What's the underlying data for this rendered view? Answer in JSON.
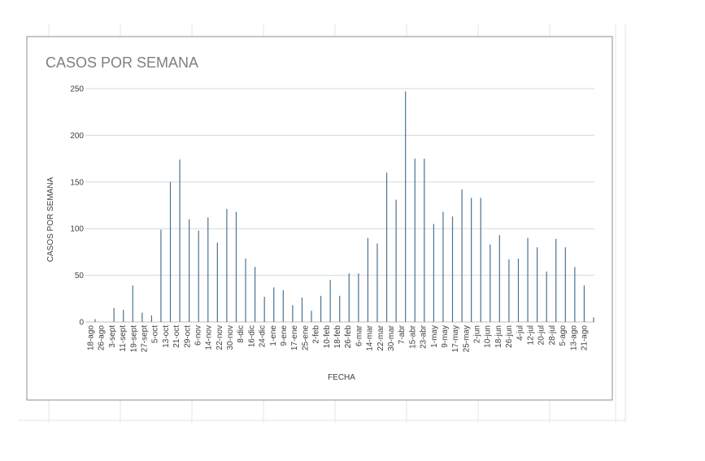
{
  "chart_data": {
    "type": "bar",
    "title": "CASOS POR SEMANA",
    "y_label": "CASOS POR SEMANA",
    "x_label": "FECHA",
    "xticks": [
      "18-ago",
      "26-ago",
      "3-sept",
      "11-sept",
      "19-sept",
      "27-sept",
      "5-oct",
      "13-oct",
      "21-oct",
      "29-oct",
      "6-nov",
      "14-nov",
      "22-nov",
      "30-nov",
      "8-dic",
      "16-dic",
      "24-dic",
      "1-ene",
      "9-ene",
      "17-ene",
      "25-ene",
      "2-feb",
      "10-feb",
      "18-feb",
      "26-feb",
      "6-mar",
      "14-mar",
      "22-mar",
      "30-mar",
      "7-abr",
      "15-abr",
      "23-abr",
      "1-may",
      "9-may",
      "17-may",
      "25-may",
      "2-jun",
      "10-jun",
      "18-jun",
      "26-jun",
      "4-jul",
      "12-jul",
      "20-jul",
      "28-jul",
      "5-ago",
      "13-ago",
      "21-ago"
    ],
    "values": [
      3,
      0,
      15,
      13,
      39,
      10,
      7,
      99,
      150,
      174,
      110,
      98,
      112,
      85,
      121,
      118,
      68,
      59,
      27,
      37,
      34,
      18,
      26,
      12,
      28,
      45,
      28,
      52,
      52,
      90,
      84,
      160,
      131,
      247,
      175,
      175,
      105,
      118,
      113,
      142,
      133,
      133,
      83,
      93,
      67,
      68,
      90,
      80,
      54,
      89,
      80,
      59,
      39,
      5
    ],
    "color": "#4a7394",
    "ylim": [
      0,
      250
    ],
    "yticks": [
      0,
      50,
      100,
      150,
      200,
      250
    ],
    "grid": true
  }
}
